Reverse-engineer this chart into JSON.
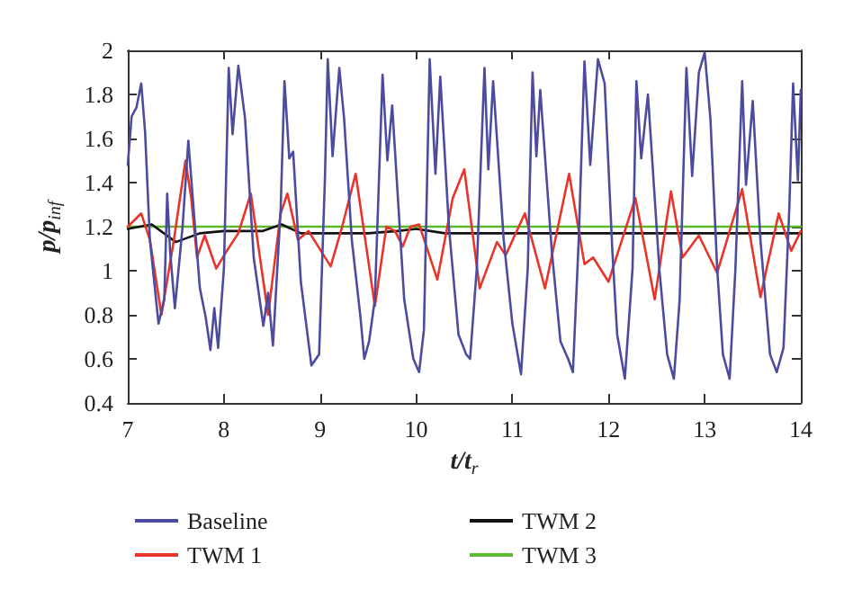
{
  "chart_data": {
    "type": "line",
    "xlabel": "t/t$_{r}$",
    "ylabel": "p/p$_{inf}$",
    "xlim": [
      7,
      14
    ],
    "xticks": [
      7,
      8,
      9,
      10,
      11,
      12,
      13,
      14
    ],
    "ylim": [
      0.4,
      2
    ],
    "yticks": [
      0.4,
      0.6,
      0.8,
      1,
      1.2,
      1.4,
      1.6,
      1.8,
      2
    ],
    "grid": false,
    "legend": "bottom",
    "marker": "none",
    "line_style": "solid",
    "series": [
      {
        "name": "Baseline",
        "color": "#4b4ba0",
        "x": [
          7.0,
          7.04,
          7.09,
          7.14,
          7.18,
          7.23,
          7.32,
          7.38,
          7.41,
          7.44,
          7.49,
          7.57,
          7.63,
          7.69,
          7.75,
          7.81,
          7.86,
          7.9,
          7.94,
          8.0,
          8.05,
          8.09,
          8.15,
          8.22,
          8.31,
          8.41,
          8.46,
          8.51,
          8.59,
          8.63,
          8.68,
          8.72,
          8.8,
          8.91,
          8.99,
          9.05,
          9.08,
          9.13,
          9.2,
          9.25,
          9.33,
          9.42,
          9.46,
          9.51,
          9.57,
          9.65,
          9.7,
          9.75,
          9.875,
          9.97,
          10.03,
          10.08,
          10.14,
          10.2,
          10.25,
          10.34,
          10.44,
          10.52,
          10.56,
          10.63,
          10.71,
          10.75,
          10.8,
          10.91,
          11.0,
          11.09,
          11.16,
          11.21,
          11.25,
          11.29,
          11.41,
          11.5,
          11.58,
          11.63,
          11.69,
          11.75,
          11.81,
          11.89,
          11.96,
          12.04,
          12.09,
          12.17,
          12.25,
          12.29,
          12.34,
          12.41,
          12.53,
          12.61,
          12.68,
          12.74,
          12.81,
          12.87,
          12.94,
          13.0,
          13.06,
          13.13,
          13.19,
          13.26,
          13.32,
          13.39,
          13.43,
          13.5,
          13.58,
          13.68,
          13.75,
          13.82,
          13.88,
          13.92,
          13.97,
          14.0
        ],
        "values": [
          1.48,
          1.7,
          1.74,
          1.85,
          1.63,
          1.14,
          0.76,
          0.87,
          1.35,
          1.09,
          0.83,
          1.2,
          1.59,
          1.25,
          0.92,
          0.79,
          0.64,
          0.83,
          0.65,
          1.01,
          1.92,
          1.62,
          1.93,
          1.69,
          1.06,
          0.75,
          0.9,
          0.66,
          1.28,
          1.86,
          1.51,
          1.54,
          0.95,
          0.57,
          0.62,
          1.41,
          1.96,
          1.52,
          1.92,
          1.69,
          1.14,
          0.79,
          0.6,
          0.68,
          0.87,
          1.89,
          1.5,
          1.75,
          0.87,
          0.6,
          0.54,
          0.73,
          1.96,
          1.44,
          1.88,
          1.2,
          0.71,
          0.62,
          0.6,
          1.01,
          1.92,
          1.46,
          1.86,
          1.14,
          0.76,
          0.53,
          1.01,
          1.9,
          1.52,
          1.82,
          1.09,
          0.68,
          0.6,
          0.54,
          1.14,
          1.95,
          1.48,
          1.96,
          1.85,
          1.09,
          0.71,
          0.51,
          1.01,
          1.86,
          1.51,
          1.8,
          1.0,
          0.62,
          0.51,
          0.87,
          1.92,
          1.43,
          1.9,
          1.99,
          1.69,
          1.01,
          0.62,
          0.51,
          1.01,
          1.86,
          1.39,
          1.77,
          1.14,
          0.62,
          0.54,
          0.65,
          1.28,
          1.85,
          1.41,
          1.82
        ]
      },
      {
        "name": "TWM 1",
        "color": "#e8342a",
        "x": [
          7.0,
          7.14,
          7.23,
          7.35,
          7.48,
          7.6,
          7.66,
          7.72,
          7.8,
          7.92,
          8.03,
          8.15,
          8.28,
          8.46,
          8.59,
          8.66,
          8.77,
          8.88,
          9.11,
          9.23,
          9.37,
          9.57,
          9.69,
          9.78,
          9.86,
          9.94,
          10.03,
          10.22,
          10.38,
          10.5,
          10.66,
          10.84,
          10.93,
          11.13,
          11.34,
          11.59,
          11.75,
          11.84,
          12.0,
          12.28,
          12.48,
          12.65,
          12.77,
          12.94,
          13.13,
          13.39,
          13.58,
          13.77,
          13.9,
          14.0
        ],
        "values": [
          1.2,
          1.26,
          1.14,
          0.8,
          1.14,
          1.5,
          1.33,
          1.06,
          1.16,
          1.01,
          1.09,
          1.17,
          1.35,
          0.8,
          1.26,
          1.35,
          1.14,
          1.18,
          1.02,
          1.2,
          1.44,
          0.84,
          1.2,
          1.18,
          1.11,
          1.2,
          1.21,
          0.96,
          1.33,
          1.46,
          0.92,
          1.13,
          1.07,
          1.26,
          0.92,
          1.44,
          1.03,
          1.06,
          0.95,
          1.33,
          0.87,
          1.36,
          1.06,
          1.16,
          0.99,
          1.37,
          0.88,
          1.26,
          1.09,
          1.18
        ]
      },
      {
        "name": "TWM 2",
        "color": "#111111",
        "x": [
          7.0,
          7.25,
          7.5,
          7.75,
          8.0,
          8.4,
          8.6,
          8.8,
          9.0,
          9.5,
          9.8,
          10.0,
          10.3,
          11.0,
          12.0,
          13.0,
          14.0
        ],
        "values": [
          1.19,
          1.21,
          1.13,
          1.17,
          1.18,
          1.18,
          1.21,
          1.17,
          1.17,
          1.17,
          1.18,
          1.19,
          1.17,
          1.17,
          1.17,
          1.17,
          1.17
        ]
      },
      {
        "name": "TWM 3",
        "color": "#5cb82e",
        "x": [
          7.0,
          8.0,
          9.0,
          10.0,
          11.0,
          12.0,
          13.0,
          14.0
        ],
        "values": [
          1.2,
          1.2,
          1.2,
          1.2,
          1.2,
          1.2,
          1.2,
          1.2
        ]
      }
    ]
  }
}
